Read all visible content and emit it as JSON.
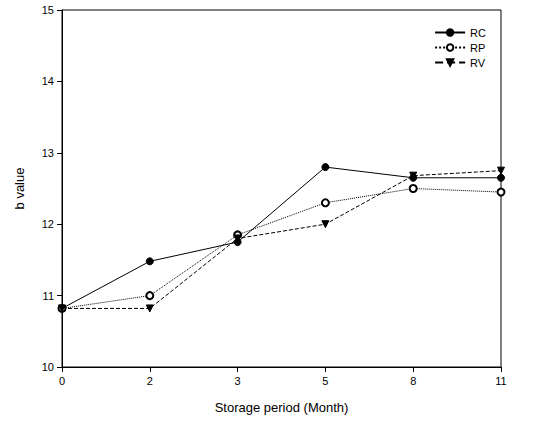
{
  "chart_data": {
    "type": "line",
    "x_label": "Storage period (Month)",
    "y_label": "b value",
    "categories": [
      0,
      2,
      3,
      5,
      8,
      11
    ],
    "ylim": [
      10,
      15
    ],
    "yticks": [
      10,
      11,
      12,
      13,
      14,
      15
    ],
    "grid": false,
    "legend": "upper right",
    "series": [
      {
        "name": "RC",
        "color": "#000000",
        "marker": "circle",
        "line_style": "solid",
        "values": [
          10.82,
          11.48,
          11.75,
          12.8,
          12.65,
          12.65
        ]
      },
      {
        "name": "RP",
        "color": "#000000",
        "marker": "circle_open",
        "line_style": "dotted",
        "values": [
          10.82,
          11.0,
          11.85,
          12.3,
          12.5,
          12.45
        ]
      },
      {
        "name": "RV",
        "color": "#000000",
        "marker": "triangle_down",
        "line_style": "dashed",
        "values": [
          10.82,
          10.82,
          11.8,
          12.0,
          12.68,
          12.75
        ]
      }
    ]
  }
}
